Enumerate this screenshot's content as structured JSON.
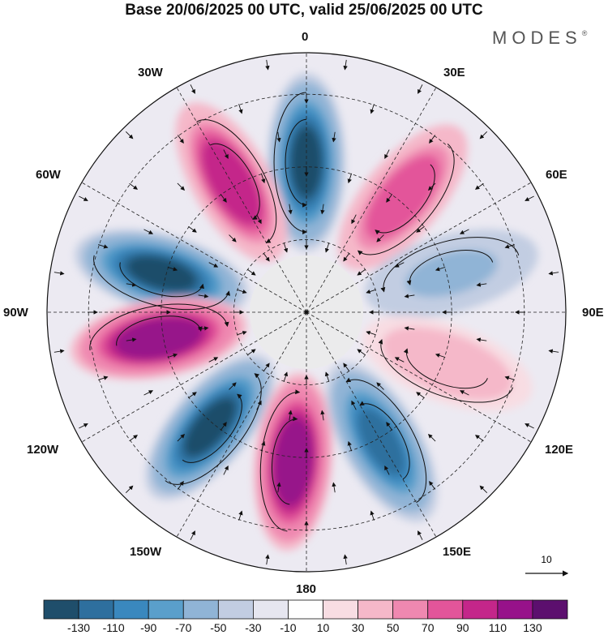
{
  "title": "Base 20/06/2025 00 UTC, valid 25/06/2025 00 UTC",
  "logo": "MODES",
  "logo_mark": "®",
  "longitude_labels": {
    "n0": "0",
    "e30": "30E",
    "e60": "60E",
    "e90": "90E",
    "e120": "120E",
    "e150": "150E",
    "s180": "180",
    "w150": "150W",
    "w120": "120W",
    "w90": "90W",
    "w60": "60W",
    "w30": "30W"
  },
  "vector_reference": {
    "label": "10"
  },
  "colorbar": {
    "colors": [
      "#1f4e6b",
      "#2e6f9e",
      "#3a88be",
      "#5a9fcb",
      "#90b4d6",
      "#c2cde2",
      "#e6e6f0",
      "#ffffff",
      "#f8dde3",
      "#f5b8c9",
      "#ef88b0",
      "#e3559a",
      "#c4268a",
      "#97128a",
      "#5c0f6e"
    ],
    "tick_labels": [
      "-130",
      "-110",
      "-90",
      "-70",
      "-50",
      "-30",
      "-10",
      "10",
      "30",
      "50",
      "70",
      "90",
      "110",
      "130"
    ]
  },
  "map": {
    "projection": "south polar stereographic",
    "field": "shaded anomaly with streamlines and vectors",
    "anomaly_centers": [
      {
        "sign": "negative",
        "strength": -130,
        "sector": "0"
      },
      {
        "sign": "positive",
        "strength": 110,
        "sector": "30W"
      },
      {
        "sign": "positive",
        "strength": 90,
        "sector": "40E"
      },
      {
        "sign": "negative",
        "strength": -130,
        "sector": "75W"
      },
      {
        "sign": "positive",
        "strength": 130,
        "sector": "100W"
      },
      {
        "sign": "negative",
        "strength": -50,
        "sector": "75E"
      },
      {
        "sign": "positive",
        "strength": 50,
        "sector": "110E"
      },
      {
        "sign": "negative",
        "strength": -130,
        "sector": "140W"
      },
      {
        "sign": "positive",
        "strength": 130,
        "sector": "175W"
      },
      {
        "sign": "negative",
        "strength": -110,
        "sector": "150E"
      }
    ]
  }
}
